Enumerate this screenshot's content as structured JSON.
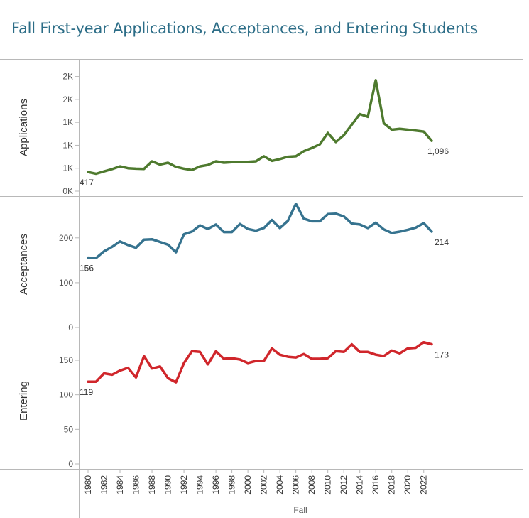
{
  "title": "Fall First-year Applications, Acceptances, and Entering Students",
  "x_axis_title": "Fall",
  "x_tick_labels": [
    "1980",
    "1982",
    "1984",
    "1986",
    "1988",
    "1990",
    "1992",
    "1994",
    "1996",
    "1998",
    "2000",
    "2002",
    "2004",
    "2006",
    "2008",
    "2010",
    "2012",
    "2014",
    "2016",
    "2018",
    "2020",
    "2022"
  ],
  "chart_data": [
    {
      "type": "line",
      "name": "applications",
      "ylabel": "Applications",
      "color": "#4e7a2e",
      "ylim": [
        0,
        2850
      ],
      "tick_values": [
        0,
        500,
        1000,
        1500,
        2000,
        2500
      ],
      "tick_labels": [
        "0K",
        "1K",
        "1K",
        "1K",
        "2K",
        "2K"
      ],
      "first_label": "417",
      "last_label": "1,096",
      "x": [
        1980,
        1981,
        1982,
        1983,
        1984,
        1985,
        1986,
        1987,
        1988,
        1989,
        1990,
        1991,
        1992,
        1993,
        1994,
        1995,
        1996,
        1997,
        1998,
        1999,
        2000,
        2001,
        2002,
        2003,
        2004,
        2005,
        2006,
        2007,
        2008,
        2009,
        2010,
        2011,
        2012,
        2013,
        2014,
        2015,
        2016,
        2017,
        2018,
        2019,
        2020,
        2021,
        2022,
        2023
      ],
      "values": [
        417,
        380,
        430,
        480,
        540,
        500,
        490,
        485,
        650,
        580,
        620,
        530,
        490,
        460,
        540,
        570,
        650,
        620,
        630,
        630,
        640,
        650,
        760,
        660,
        700,
        750,
        760,
        870,
        940,
        1020,
        1270,
        1070,
        1220,
        1450,
        1680,
        1620,
        2420,
        1480,
        1340,
        1360,
        1340,
        1320,
        1300,
        1096
      ]
    },
    {
      "type": "line",
      "name": "acceptances",
      "ylabel": "Acceptances",
      "color": "#36738f",
      "ylim": [
        0,
        290
      ],
      "tick_values": [
        0,
        100,
        200
      ],
      "tick_labels": [
        "0",
        "100",
        "200"
      ],
      "first_label": "156",
      "last_label": "214",
      "x": [
        1980,
        1981,
        1982,
        1983,
        1984,
        1985,
        1986,
        1987,
        1988,
        1989,
        1990,
        1991,
        1992,
        1993,
        1994,
        1995,
        1996,
        1997,
        1998,
        1999,
        2000,
        2001,
        2002,
        2003,
        2004,
        2005,
        2006,
        2007,
        2008,
        2009,
        2010,
        2011,
        2012,
        2013,
        2014,
        2015,
        2016,
        2017,
        2018,
        2019,
        2020,
        2021,
        2022,
        2023
      ],
      "values": [
        156,
        155,
        170,
        180,
        192,
        184,
        178,
        196,
        197,
        191,
        185,
        168,
        208,
        214,
        228,
        220,
        230,
        213,
        213,
        231,
        220,
        216,
        222,
        240,
        222,
        238,
        276,
        243,
        237,
        237,
        253,
        254,
        248,
        232,
        230,
        222,
        234,
        219,
        211,
        214,
        218,
        223,
        233,
        214
      ]
    },
    {
      "type": "line",
      "name": "entering",
      "ylabel": "Entering",
      "color": "#d0262b",
      "ylim": [
        0,
        188
      ],
      "tick_values": [
        0,
        50,
        100,
        150
      ],
      "tick_labels": [
        "0",
        "50",
        "100",
        "150"
      ],
      "first_label": "119",
      "last_label": "173",
      "x": [
        1980,
        1981,
        1982,
        1983,
        1984,
        1985,
        1986,
        1987,
        1988,
        1989,
        1990,
        1991,
        1992,
        1993,
        1994,
        1995,
        1996,
        1997,
        1998,
        1999,
        2000,
        2001,
        2002,
        2003,
        2004,
        2005,
        2006,
        2007,
        2008,
        2009,
        2010,
        2011,
        2012,
        2013,
        2014,
        2015,
        2016,
        2017,
        2018,
        2019,
        2020,
        2021,
        2022,
        2023
      ],
      "values": [
        119,
        119,
        131,
        129,
        135,
        139,
        125,
        156,
        138,
        141,
        124,
        118,
        146,
        163,
        162,
        144,
        163,
        152,
        153,
        151,
        146,
        149,
        149,
        167,
        158,
        155,
        154,
        159,
        152,
        152,
        153,
        163,
        162,
        173,
        162,
        162,
        158,
        156,
        164,
        160,
        167,
        168,
        176,
        173
      ]
    }
  ]
}
